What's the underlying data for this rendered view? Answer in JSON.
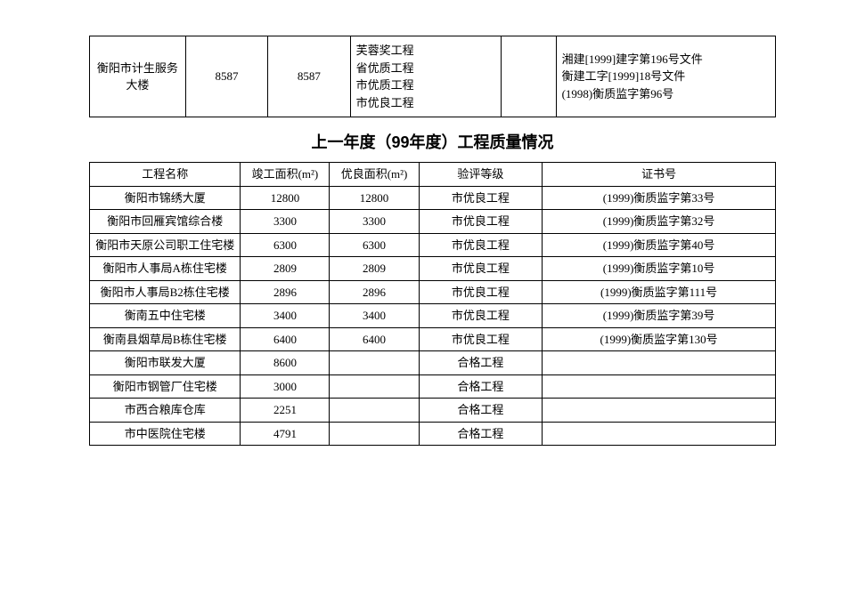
{
  "topRow": {
    "name": "衡阳市计生服务大楼",
    "completedArea": "8587",
    "goodArea": "8587",
    "awards": "芙蓉奖工程\n省优质工程\n市优质工程\n市优良工程",
    "filler": "",
    "certs": "湘建[1999]建字第196号文件\n衡建工字[1999]18号文件\n(1998)衡质监字第96号"
  },
  "sectionTitle": "上一年度（99年度）工程质量情况",
  "table": {
    "columns": [
      "工程名称",
      "竣工面积(m²)",
      "优良面积(m²)",
      "验评等级",
      "证书号"
    ],
    "rows": [
      [
        "衡阳市锦绣大厦",
        "12800",
        "12800",
        "市优良工程",
        "(1999)衡质监字第33号"
      ],
      [
        "衡阳市回雁宾馆综合楼",
        "3300",
        "3300",
        "市优良工程",
        "(1999)衡质监字第32号"
      ],
      [
        "衡阳市天原公司职工住宅楼",
        "6300",
        "6300",
        "市优良工程",
        "(1999)衡质监字第40号"
      ],
      [
        "衡阳市人事局A栋住宅楼",
        "2809",
        "2809",
        "市优良工程",
        "(1999)衡质监字第10号"
      ],
      [
        "衡阳市人事局B2栋住宅楼",
        "2896",
        "2896",
        "市优良工程",
        "(1999)衡质监字第111号"
      ],
      [
        "衡南五中住宅楼",
        "3400",
        "3400",
        "市优良工程",
        "(1999)衡质监字第39号"
      ],
      [
        "衡南县烟草局B栋住宅楼",
        "6400",
        "6400",
        "市优良工程",
        "(1999)衡质监字第130号"
      ],
      [
        "衡阳市联发大厦",
        "8600",
        "",
        "合格工程",
        ""
      ],
      [
        "衡阳市钢管厂住宅楼",
        "3000",
        "",
        "合格工程",
        ""
      ],
      [
        "市西合粮库仓库",
        "2251",
        "",
        "合格工程",
        ""
      ],
      [
        "市中医院住宅楼",
        "4791",
        "",
        "合格工程",
        ""
      ]
    ]
  }
}
